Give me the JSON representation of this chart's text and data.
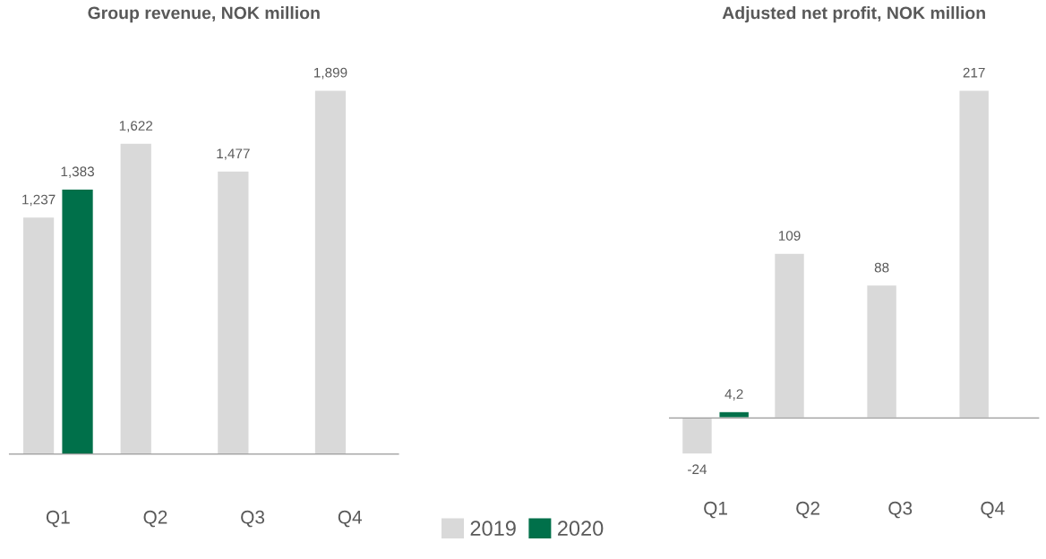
{
  "chart_data": [
    {
      "type": "bar",
      "title": "Group revenue, NOK million",
      "categories": [
        "Q1",
        "Q2",
        "Q3",
        "Q4"
      ],
      "legend": "bottom",
      "series": [
        {
          "name": "2019",
          "color": "#d9d9d9",
          "values": [
            1237,
            1622,
            1477,
            1899
          ],
          "value_labels": [
            "1,237",
            "1,622",
            "1,477",
            "1,899"
          ]
        },
        {
          "name": "2020",
          "color": "#00704a",
          "values": [
            1383,
            null,
            null,
            null
          ],
          "value_labels": [
            "1,383",
            null,
            null,
            null
          ]
        }
      ]
    },
    {
      "type": "bar",
      "title": "Adjusted net profit, NOK million",
      "categories": [
        "Q1",
        "Q2",
        "Q3",
        "Q4"
      ],
      "series": [
        {
          "color": "#d9d9d9",
          "values": [
            -24,
            109,
            88,
            217
          ],
          "value_labels": [
            "-24",
            "109",
            "88",
            "217"
          ]
        },
        {
          "color": "#00704a",
          "values": [
            4.2,
            null,
            null,
            null
          ],
          "value_labels": [
            "4,2",
            null,
            null,
            null
          ]
        }
      ]
    }
  ]
}
